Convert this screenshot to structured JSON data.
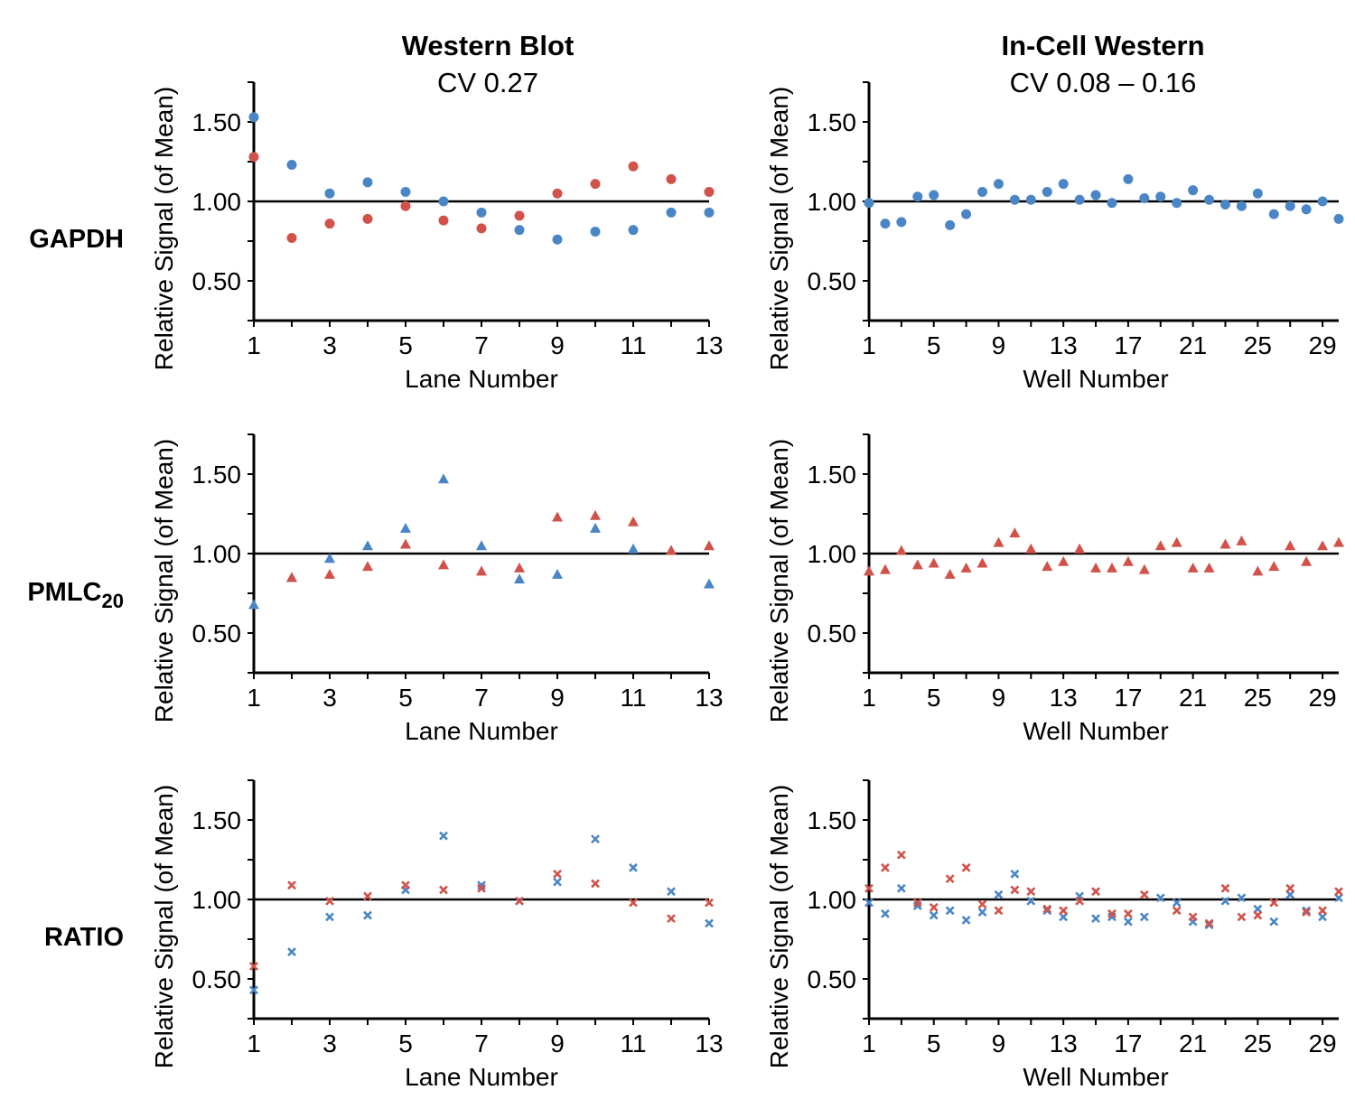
{
  "colors": {
    "series_a": "#4a86c5",
    "series_b": "#d1524b"
  },
  "columns": [
    {
      "title": "Western Blot",
      "subtitle": "CV 0.27"
    },
    {
      "title": "In-Cell Western",
      "subtitle": "CV 0.08 – 0.16"
    }
  ],
  "rows": [
    {
      "label": "GAPDH",
      "sub": ""
    },
    {
      "label": "PMLC",
      "sub": "20"
    },
    {
      "label": "RATIO",
      "sub": ""
    }
  ],
  "chart_data": [
    {
      "type": "scatter",
      "row": "GAPDH",
      "column": "Western Blot",
      "marker": "circle",
      "xlabel": "Lane Number",
      "ylabel": "Relative Signal (of Mean)",
      "xlim": [
        1,
        13
      ],
      "ylim": [
        0.25,
        1.75
      ],
      "xticks": [
        1,
        3,
        5,
        7,
        9,
        11,
        13
      ],
      "yticks": [
        "0.50",
        "1.00",
        "1.50"
      ],
      "reference_line": 1.0,
      "x": [
        1,
        2,
        3,
        4,
        5,
        6,
        7,
        8,
        9,
        10,
        11,
        12,
        13
      ],
      "series": [
        {
          "color": "#4a86c5",
          "values": [
            1.53,
            1.23,
            1.05,
            1.12,
            1.06,
            1.0,
            0.93,
            0.82,
            0.76,
            0.81,
            0.82,
            0.93,
            0.93
          ]
        },
        {
          "color": "#d1524b",
          "values": [
            1.28,
            0.77,
            0.86,
            0.89,
            0.97,
            0.88,
            0.83,
            0.91,
            1.05,
            1.11,
            1.22,
            1.14,
            1.06
          ]
        }
      ]
    },
    {
      "type": "scatter",
      "row": "GAPDH",
      "column": "In-Cell Western",
      "marker": "circle",
      "xlabel": "Well Number",
      "ylabel": "Relative Signal (of Mean)",
      "xlim": [
        1,
        30
      ],
      "ylim": [
        0.25,
        1.75
      ],
      "xticks": [
        1,
        5,
        9,
        13,
        17,
        21,
        25,
        29
      ],
      "yticks": [
        "0.50",
        "1.00",
        "1.50"
      ],
      "reference_line": 1.0,
      "x": [
        1,
        2,
        3,
        4,
        5,
        6,
        7,
        8,
        9,
        10,
        11,
        12,
        13,
        14,
        15,
        16,
        17,
        18,
        19,
        20,
        21,
        22,
        23,
        24,
        25,
        26,
        27,
        28,
        29,
        30
      ],
      "series": [
        {
          "color": "#4a86c5",
          "values": [
            0.99,
            0.86,
            0.87,
            1.03,
            1.04,
            0.85,
            0.92,
            1.06,
            1.11,
            1.01,
            1.01,
            1.06,
            1.11,
            1.01,
            1.04,
            0.99,
            1.14,
            1.02,
            1.03,
            0.99,
            1.07,
            1.01,
            0.98,
            0.97,
            1.05,
            0.92,
            0.97,
            0.95,
            1.0,
            0.89
          ]
        }
      ]
    },
    {
      "type": "scatter",
      "row": "PMLC20",
      "column": "Western Blot",
      "marker": "triangle",
      "xlabel": "Lane Number",
      "ylabel": "Relative Signal (of Mean)",
      "xlim": [
        1,
        13
      ],
      "ylim": [
        0.25,
        1.75
      ],
      "xticks": [
        1,
        3,
        5,
        7,
        9,
        11,
        13
      ],
      "yticks": [
        "0.50",
        "1.00",
        "1.50"
      ],
      "reference_line": 1.0,
      "x": [
        1,
        2,
        3,
        4,
        5,
        6,
        7,
        8,
        9,
        10,
        11,
        12,
        13
      ],
      "series": [
        {
          "color": "#4a86c5",
          "values": [
            0.68,
            0.85,
            0.97,
            1.05,
            1.16,
            1.47,
            1.05,
            0.84,
            0.87,
            1.16,
            1.03,
            1.02,
            0.81
          ]
        },
        {
          "color": "#d1524b",
          "values": [
            null,
            0.85,
            0.87,
            0.92,
            1.06,
            0.93,
            0.89,
            0.91,
            1.23,
            1.24,
            1.2,
            1.02,
            1.05
          ]
        }
      ]
    },
    {
      "type": "scatter",
      "row": "PMLC20",
      "column": "In-Cell Western",
      "marker": "triangle",
      "xlabel": "Well Number",
      "ylabel": "Relative Signal (of Mean)",
      "xlim": [
        1,
        30
      ],
      "ylim": [
        0.25,
        1.75
      ],
      "xticks": [
        1,
        5,
        9,
        13,
        17,
        21,
        25,
        29
      ],
      "yticks": [
        "0.50",
        "1.00",
        "1.50"
      ],
      "reference_line": 1.0,
      "x": [
        1,
        2,
        3,
        4,
        5,
        6,
        7,
        8,
        9,
        10,
        11,
        12,
        13,
        14,
        15,
        16,
        17,
        18,
        19,
        20,
        21,
        22,
        23,
        24,
        25,
        26,
        27,
        28,
        29,
        30
      ],
      "series": [
        {
          "color": "#d1524b",
          "values": [
            0.89,
            0.9,
            1.02,
            0.93,
            0.94,
            0.87,
            0.91,
            0.94,
            1.07,
            1.13,
            1.03,
            0.92,
            0.95,
            1.03,
            0.91,
            0.91,
            0.95,
            0.9,
            1.05,
            1.07,
            0.91,
            0.91,
            1.06,
            1.08,
            0.89,
            0.92,
            1.05,
            0.95,
            1.05,
            1.07
          ]
        }
      ]
    },
    {
      "type": "scatter",
      "row": "RATIO",
      "column": "Western Blot",
      "marker": "x",
      "xlabel": "Lane Number",
      "ylabel": "Relative Signal (of Mean)",
      "xlim": [
        1,
        13
      ],
      "ylim": [
        0.25,
        1.75
      ],
      "xticks": [
        1,
        3,
        5,
        7,
        9,
        11,
        13
      ],
      "yticks": [
        "0.50",
        "1.00",
        "1.50"
      ],
      "reference_line": 1.0,
      "x": [
        1,
        2,
        3,
        4,
        5,
        6,
        7,
        8,
        9,
        10,
        11,
        12,
        13
      ],
      "series": [
        {
          "color": "#4a86c5",
          "values": [
            0.43,
            0.67,
            0.89,
            0.9,
            1.06,
            1.4,
            1.09,
            0.99,
            1.11,
            1.38,
            1.2,
            1.05,
            0.85
          ]
        },
        {
          "color": "#d1524b",
          "values": [
            0.58,
            1.09,
            0.99,
            1.02,
            1.09,
            1.06,
            1.07,
            0.99,
            1.16,
            1.1,
            0.98,
            0.88,
            0.98
          ]
        }
      ]
    },
    {
      "type": "scatter",
      "row": "RATIO",
      "column": "In-Cell Western",
      "marker": "x",
      "xlabel": "Well Number",
      "ylabel": "Relative Signal (of Mean)",
      "xlim": [
        1,
        30
      ],
      "ylim": [
        0.25,
        1.75
      ],
      "xticks": [
        1,
        5,
        9,
        13,
        17,
        21,
        25,
        29
      ],
      "yticks": [
        "0.50",
        "1.00",
        "1.50"
      ],
      "reference_line": 1.0,
      "x": [
        1,
        2,
        3,
        4,
        5,
        6,
        7,
        8,
        9,
        10,
        11,
        12,
        13,
        14,
        15,
        16,
        17,
        18,
        19,
        20,
        21,
        22,
        23,
        24,
        25,
        26,
        27,
        28,
        29,
        30
      ],
      "series": [
        {
          "color": "#4a86c5",
          "values": [
            0.98,
            0.91,
            1.07,
            0.96,
            0.9,
            0.93,
            0.87,
            0.92,
            1.03,
            1.16,
            0.99,
            0.93,
            0.89,
            1.02,
            0.88,
            0.89,
            0.86,
            0.89,
            1.01,
            0.98,
            0.86,
            0.84,
            0.99,
            1.01,
            0.94,
            0.86,
            1.03,
            0.93,
            0.89,
            1.01
          ]
        },
        {
          "color": "#d1524b",
          "values": [
            1.07,
            1.2,
            1.28,
            0.98,
            0.95,
            1.13,
            1.2,
            0.97,
            0.93,
            1.06,
            1.05,
            0.94,
            0.93,
            0.99,
            1.05,
            0.91,
            0.91,
            1.03,
            null,
            0.93,
            0.89,
            0.85,
            1.07,
            0.89,
            0.9,
            0.98,
            1.07,
            0.92,
            0.93,
            1.05
          ]
        }
      ]
    }
  ]
}
